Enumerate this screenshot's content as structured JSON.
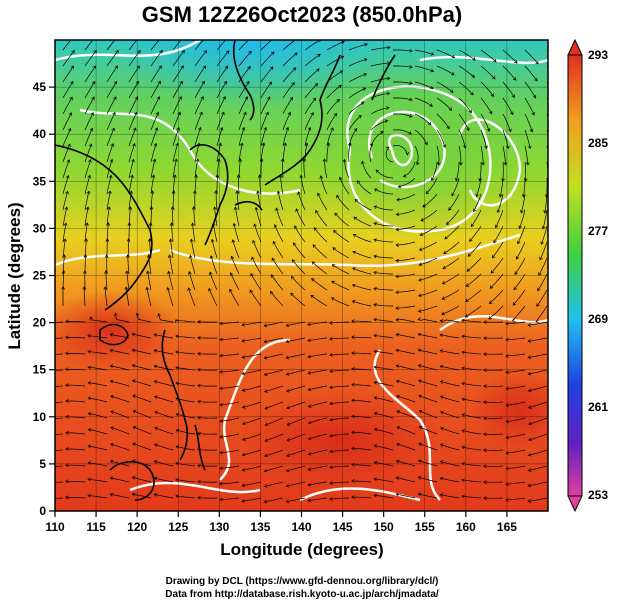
{
  "title": "GSM 12Z26Oct2023 (850.0hPa)",
  "x_axis": {
    "label": "Longitude (degrees)",
    "range": [
      110,
      170
    ],
    "ticks": [
      "110",
      "115",
      "120",
      "125",
      "130",
      "135",
      "140",
      "145",
      "150",
      "155",
      "160",
      "165"
    ]
  },
  "y_axis": {
    "label": "Latitude  (degrees)",
    "range": [
      0,
      50
    ],
    "ticks": [
      "0",
      "5",
      "10",
      "15",
      "20",
      "25",
      "30",
      "35",
      "40",
      "45"
    ]
  },
  "colorbar": {
    "labels": [
      "293",
      "285",
      "277",
      "269",
      "261",
      "253"
    ],
    "range": [
      253,
      293
    ],
    "colors": [
      "#d94070",
      "#3030c0",
      "#20c0e0",
      "#40d040",
      "#e0e020",
      "#f08020",
      "#e03020"
    ]
  },
  "credits": {
    "line1": "Drawing by DCL (https://www.gfd-dennou.org/library/dcl/)",
    "line2": "Data from http://database.rish.kyoto-u.ac.jp/arch/jmadata/"
  }
}
